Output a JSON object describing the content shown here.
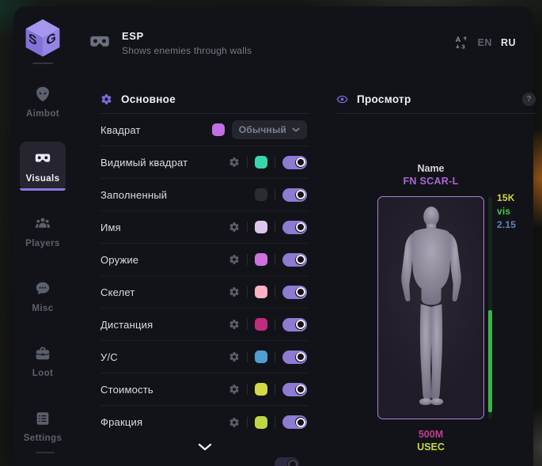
{
  "header": {
    "icon": "goggles-icon",
    "title": "ESP",
    "subtitle": "Shows enemies through walls",
    "language": {
      "icon": "translate-icon",
      "options": [
        "EN",
        "RU"
      ],
      "selected": "RU"
    }
  },
  "sidebar": {
    "logo": "sg-cube-logo",
    "items": [
      {
        "id": "aimbot",
        "label": "Aimbot",
        "icon": "alien-icon",
        "active": false
      },
      {
        "id": "visuals",
        "label": "Visuals",
        "icon": "goggles-icon",
        "active": true
      },
      {
        "id": "players",
        "label": "Players",
        "icon": "players-icon",
        "active": false
      },
      {
        "id": "misc",
        "label": "Misc",
        "icon": "chat-icon",
        "active": false
      },
      {
        "id": "loot",
        "label": "Loot",
        "icon": "briefcase-icon",
        "active": false
      },
      {
        "id": "settings",
        "label": "Settings",
        "icon": "list-icon",
        "active": false
      }
    ]
  },
  "settings_panel": {
    "icon": "gear-icon",
    "title": "Основное",
    "rows": [
      {
        "label": "Квадрат",
        "gear": false,
        "swatch": "#c46ee6",
        "control": "dropdown",
        "dropdown_value": "Обычный"
      },
      {
        "label": "Видимый квадрат",
        "gear": true,
        "swatch": "#38d6ae",
        "control": "toggle",
        "on": true
      },
      {
        "label": "Заполненный",
        "gear": false,
        "swatch": "#2b2b33",
        "control": "toggle",
        "on": true
      },
      {
        "label": "Имя",
        "gear": true,
        "swatch": "#dcc6ec",
        "control": "toggle",
        "on": true
      },
      {
        "label": "Оружие",
        "gear": true,
        "swatch": "#cf72e0",
        "control": "toggle",
        "on": true
      },
      {
        "label": "Скелет",
        "gear": true,
        "swatch": "#ffb0c4",
        "control": "toggle",
        "on": true
      },
      {
        "label": "Дистанция",
        "gear": true,
        "swatch": "#c02c80",
        "control": "toggle",
        "on": true
      },
      {
        "label": "У/С",
        "gear": true,
        "swatch": "#4e9ed2",
        "control": "toggle",
        "on": true
      },
      {
        "label": "Стоимость",
        "gear": true,
        "swatch": "#d4d844",
        "control": "toggle",
        "on": true
      },
      {
        "label": "Фракция",
        "gear": true,
        "swatch": "#c2d644",
        "control": "toggle",
        "on": true
      }
    ],
    "more_indicator": "chevron-down-icon"
  },
  "preview_panel": {
    "icon": "eye-icon",
    "title": "Просмотр",
    "help_label": "?",
    "esp_preview": {
      "name_label": {
        "text": "Name",
        "color": "#d8d3de"
      },
      "weapon_label": {
        "text": "FN SCAR-L",
        "color": "#a967d6"
      },
      "value_label": {
        "text": "500M",
        "color": "#c23d8c"
      },
      "faction_label": {
        "text": "USEC",
        "color": "#c9d83e"
      },
      "stats": [
        {
          "text": "15K",
          "color": "#d8d23e"
        },
        {
          "text": "vis",
          "color": "#3ecb4e"
        },
        {
          "text": "2.15",
          "color": "#5f87b8"
        }
      ],
      "health_bar": {
        "fill_percent": 46,
        "color": "#3cb24c"
      }
    }
  },
  "colors": {
    "accent": "#8d7bd4",
    "panel_bg": "#121318",
    "active_nav_bg": "#26242f"
  }
}
